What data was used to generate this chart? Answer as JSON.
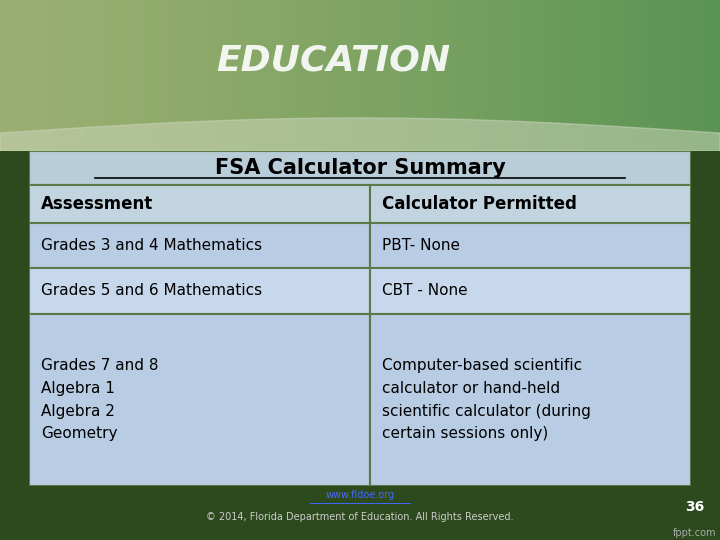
{
  "title": "FSA Calculator Summary",
  "col1_header": "Assessment",
  "col2_header": "Calculator Permitted",
  "rows": [
    [
      "Grades 3 and 4 Mathematics",
      "PBT- None"
    ],
    [
      "Grades 5 and 6 Mathematics",
      "CBT - None"
    ],
    [
      "Grades 7 and 8\nAlgebra 1\nAlgebra 2\nGeometry",
      "Computer-based scientific\ncalculator or hand-held\nscientific calculator (during\ncertain sessions only)"
    ]
  ],
  "title_bg": "#b8cdd8",
  "header_bg": "#c2d4e0",
  "row_bg_odd": "#b8cce4",
  "row_bg_even": "#c8d8ec",
  "outer_bg": "#2d4a1e",
  "top_bg": "#3a5a20",
  "border_color": "#5a7a4a",
  "title_fontsize": 15,
  "header_fontsize": 12,
  "body_fontsize": 11,
  "footer_text": "© 2014, Florida Department of Education. All Rights Reserved.",
  "footer_url": "www.fldoe.org",
  "page_num": "36",
  "fppt_text": "fppt.com"
}
